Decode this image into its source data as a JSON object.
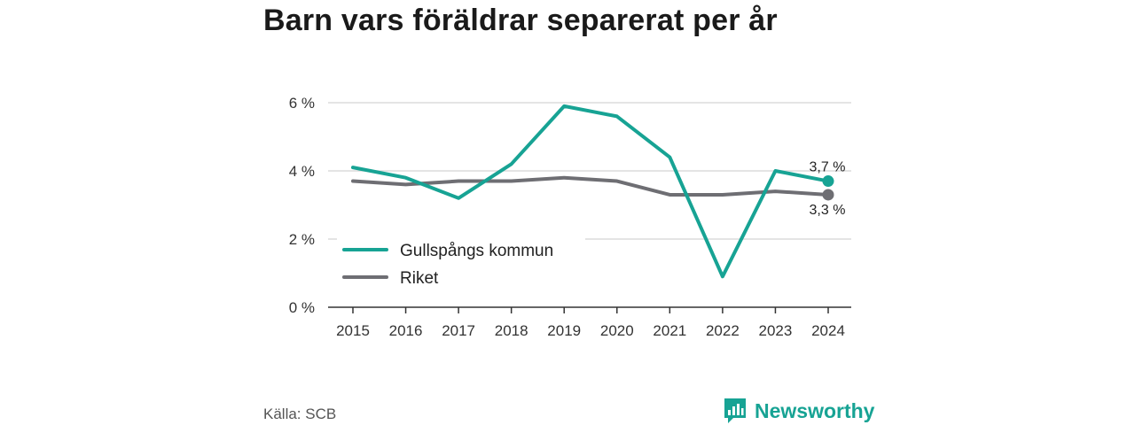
{
  "title": "Barn vars föräldrar separerat per år",
  "source": "Källa: SCB",
  "brand": "Newsworthy",
  "colors": {
    "accent": "#17a394",
    "secondary": "#6e6e73",
    "brand": "#17a394"
  },
  "chart_data": {
    "type": "line",
    "title": "Barn vars föräldrar separerat per år",
    "xlabel": "",
    "ylabel": "",
    "categories": [
      "2015",
      "2016",
      "2017",
      "2018",
      "2019",
      "2020",
      "2021",
      "2022",
      "2023",
      "2024"
    ],
    "series": [
      {
        "name": "Gullspångs kommun",
        "color": "#17a394",
        "values": [
          4.1,
          3.8,
          3.2,
          4.2,
          5.9,
          5.6,
          4.4,
          0.9,
          4.0,
          3.7
        ],
        "end_label": "3,7 %"
      },
      {
        "name": "Riket",
        "color": "#6e6e73",
        "values": [
          3.7,
          3.6,
          3.7,
          3.7,
          3.8,
          3.7,
          3.3,
          3.3,
          3.4,
          3.3
        ],
        "end_label": "3,3 %"
      }
    ],
    "yticks": [
      0,
      2,
      4,
      6
    ],
    "ytick_labels": [
      "0 %",
      "2 %",
      "4 %",
      "6 %"
    ],
    "ylim": [
      0,
      6
    ],
    "grid": true,
    "legend_position": "bottom-left"
  }
}
